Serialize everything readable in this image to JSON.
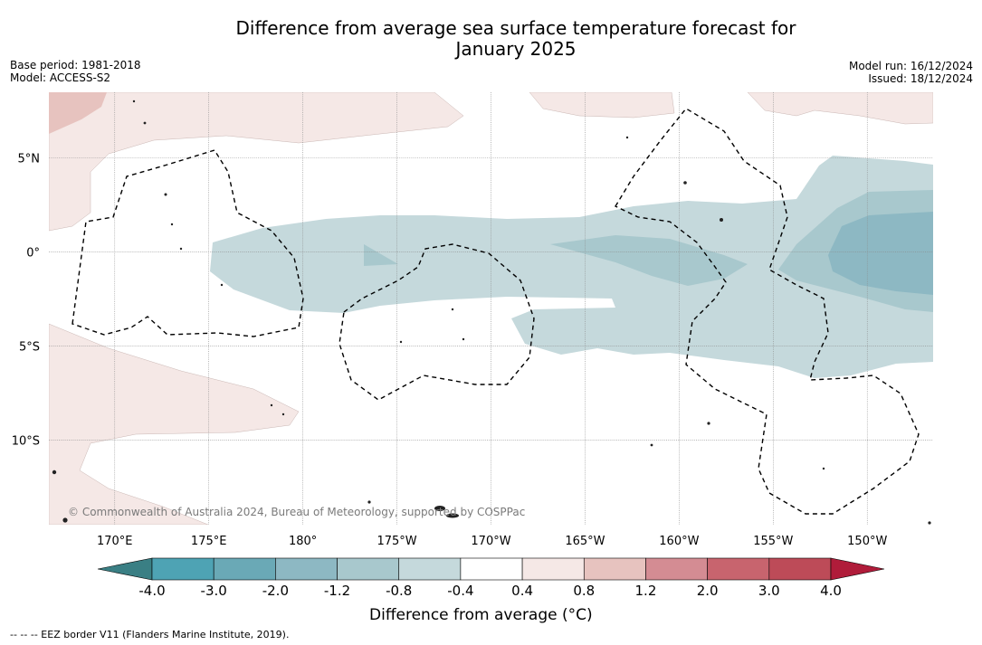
{
  "title_line1": "Difference from average sea surface temperature forecast for",
  "title_line2": "January 2025",
  "base_period": "Base period: 1981-2018",
  "model": "Model: ACCESS-S2",
  "model_run": "Model run: 16/12/2024",
  "issued": "Issued: 18/12/2024",
  "copyright": "© Commonwealth of Australia 2024, Bureau of Meteorology, supported by COSPPac",
  "map": {
    "lon_range_east": [
      166.5,
      213.5
    ],
    "lat_range": [
      -14.5,
      8.5
    ],
    "lon_ticks": [
      "170°E",
      "175°E",
      "180°",
      "175°W",
      "170°W",
      "165°W",
      "160°W",
      "155°W",
      "150°W"
    ],
    "lat_ticks": [
      "5°N",
      "0°",
      "5°S",
      "10°S"
    ],
    "grid": true
  },
  "colorbar": {
    "ticks": [
      "-4.0",
      "-3.0",
      "-2.0",
      "-1.2",
      "-0.8",
      "-0.4",
      "0.4",
      "0.8",
      "1.2",
      "2.0",
      "3.0",
      "4.0"
    ],
    "colors": [
      "#3a7f84",
      "#4ea3b4",
      "#6aa9b6",
      "#8db8c3",
      "#a8c8cd",
      "#c5d9dc",
      "#ffffff",
      "#f5e8e6",
      "#e7c3bf",
      "#d48c93",
      "#c8646e",
      "#bd4b58",
      "#b01c3a"
    ],
    "label": "Difference from average (°C)"
  },
  "eez_note": "--  --  -- EEZ border V11 (Flanders Marine Institute, 2019)."
}
